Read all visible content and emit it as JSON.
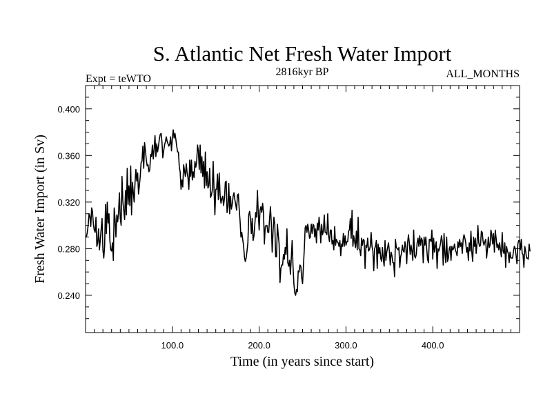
{
  "chart_data": {
    "type": "line",
    "title": "S. Atlantic Net Fresh Water Import",
    "subtitle_left": "Expt = teWTO",
    "subtitle_center": "2816kyr BP",
    "subtitle_right": "ALL_MONTHS",
    "xlabel": "Time (in years since start)",
    "ylabel": "Fresh Water Import (in Sv)",
    "xlim": [
      0,
      500
    ],
    "ylim": [
      0.208,
      0.42
    ],
    "x_ticks": [
      100,
      200,
      300,
      400
    ],
    "x_tick_labels": [
      "100.0",
      "200.0",
      "300.0",
      "400.0"
    ],
    "y_ticks": [
      0.24,
      0.28,
      0.32,
      0.36,
      0.4
    ],
    "y_tick_labels": [
      "0.240",
      "0.280",
      "0.320",
      "0.360",
      "0.400"
    ],
    "grid": false,
    "series": [
      {
        "name": "S. Atlantic Net Fresh Water Import",
        "x_start": 1,
        "x_step": 1,
        "values": [
          0.29,
          0.294,
          0.3,
          0.31,
          0.308,
          0.299,
          0.315,
          0.312,
          0.301,
          0.296,
          0.294,
          0.307,
          0.282,
          0.285,
          0.297,
          0.279,
          0.288,
          0.297,
          0.306,
          0.279,
          0.272,
          0.283,
          0.318,
          0.293,
          0.32,
          0.302,
          0.31,
          0.287,
          0.279,
          0.278,
          0.285,
          0.27,
          0.315,
          0.305,
          0.29,
          0.309,
          0.303,
          0.311,
          0.328,
          0.306,
          0.3,
          0.342,
          0.32,
          0.313,
          0.305,
          0.33,
          0.309,
          0.349,
          0.318,
          0.334,
          0.317,
          0.351,
          0.309,
          0.337,
          0.328,
          0.32,
          0.337,
          0.348,
          0.338,
          0.345,
          0.327,
          0.334,
          0.342,
          0.354,
          0.355,
          0.368,
          0.349,
          0.371,
          0.364,
          0.356,
          0.351,
          0.352,
          0.346,
          0.348,
          0.361,
          0.359,
          0.369,
          0.357,
          0.366,
          0.377,
          0.359,
          0.37,
          0.363,
          0.368,
          0.374,
          0.378,
          0.379,
          0.372,
          0.358,
          0.364,
          0.369,
          0.372,
          0.376,
          0.372,
          0.37,
          0.368,
          0.37,
          0.376,
          0.364,
          0.375,
          0.382,
          0.375,
          0.379,
          0.374,
          0.368,
          0.363,
          0.363,
          0.35,
          0.346,
          0.331,
          0.339,
          0.333,
          0.352,
          0.347,
          0.342,
          0.353,
          0.345,
          0.341,
          0.331,
          0.356,
          0.342,
          0.356,
          0.339,
          0.346,
          0.341,
          0.355,
          0.35,
          0.354,
          0.369,
          0.364,
          0.348,
          0.369,
          0.345,
          0.359,
          0.342,
          0.355,
          0.332,
          0.363,
          0.334,
          0.346,
          0.332,
          0.334,
          0.349,
          0.324,
          0.326,
          0.33,
          0.355,
          0.331,
          0.309,
          0.331,
          0.331,
          0.344,
          0.322,
          0.345,
          0.326,
          0.319,
          0.323,
          0.325,
          0.317,
          0.323,
          0.337,
          0.338,
          0.311,
          0.316,
          0.336,
          0.31,
          0.325,
          0.314,
          0.318,
          0.325,
          0.328,
          0.322,
          0.318,
          0.313,
          0.326,
          0.327,
          0.314,
          0.304,
          0.29,
          0.294,
          0.288,
          0.283,
          0.273,
          0.269,
          0.272,
          0.278,
          0.285,
          0.309,
          0.312,
          0.306,
          0.293,
          0.306,
          0.287,
          0.291,
          0.301,
          0.311,
          0.307,
          0.33,
          0.31,
          0.296,
          0.313,
          0.316,
          0.311,
          0.319,
          0.311,
          0.284,
          0.299,
          0.3,
          0.3,
          0.294,
          0.294,
          0.306,
          0.316,
          0.302,
          0.277,
          0.295,
          0.307,
          0.301,
          0.273,
          0.273,
          0.301,
          0.292,
          0.284,
          0.251,
          0.263,
          0.266,
          0.266,
          0.275,
          0.271,
          0.281,
          0.275,
          0.297,
          0.268,
          0.265,
          0.27,
          0.258,
          0.272,
          0.287,
          0.265,
          0.25,
          0.242,
          0.24,
          0.245,
          0.243,
          0.261,
          0.26,
          0.266,
          0.265,
          0.255,
          0.25,
          0.265,
          0.28,
          0.298,
          0.3,
          0.294,
          0.301,
          0.296,
          0.289,
          0.29,
          0.301,
          0.293,
          0.301,
          0.3,
          0.29,
          0.297,
          0.285,
          0.302,
          0.296,
          0.307,
          0.298,
          0.285,
          0.301,
          0.292,
          0.295,
          0.309,
          0.294,
          0.294,
          0.292,
          0.31,
          0.291,
          0.286,
          0.296,
          0.296,
          0.284,
          0.287,
          0.279,
          0.299,
          0.283,
          0.288,
          0.286,
          0.285,
          0.282,
          0.287,
          0.274,
          0.284,
          0.282,
          0.293,
          0.282,
          0.291,
          0.283,
          0.286,
          0.286,
          0.295,
          0.296,
          0.306,
          0.289,
          0.313,
          0.282,
          0.291,
          0.286,
          0.281,
          0.295,
          0.279,
          0.307,
          0.28,
          0.279,
          0.274,
          0.289,
          0.283,
          0.288,
          0.287,
          0.263,
          0.283,
          0.281,
          0.289,
          0.278,
          0.279,
          0.282,
          0.294,
          0.282,
          0.278,
          0.261,
          0.28,
          0.282,
          0.287,
          0.263,
          0.284,
          0.276,
          0.281,
          0.272,
          0.269,
          0.281,
          0.271,
          0.265,
          0.287,
          0.27,
          0.277,
          0.281,
          0.285,
          0.278,
          0.266,
          0.277,
          0.274,
          0.268,
          0.268,
          0.256,
          0.288,
          0.281,
          0.28,
          0.279,
          0.281,
          0.264,
          0.273,
          0.276,
          0.283,
          0.278,
          0.277,
          0.286,
          0.281,
          0.267,
          0.285,
          0.292,
          0.285,
          0.275,
          0.283,
          0.278,
          0.27,
          0.296,
          0.274,
          0.272,
          0.275,
          0.285,
          0.289,
          0.282,
          0.291,
          0.283,
          0.289,
          0.287,
          0.268,
          0.29,
          0.283,
          0.29,
          0.28,
          0.271,
          0.268,
          0.288,
          0.288,
          0.286,
          0.296,
          0.271,
          0.289,
          0.277,
          0.282,
          0.286,
          0.263,
          0.28,
          0.278,
          0.281,
          0.285,
          0.291,
          0.286,
          0.266,
          0.293,
          0.276,
          0.268,
          0.29,
          0.269,
          0.272,
          0.28,
          0.282,
          0.27,
          0.282,
          0.279,
          0.28,
          0.284,
          0.279,
          0.277,
          0.274,
          0.286,
          0.281,
          0.288,
          0.282,
          0.285,
          0.276,
          0.288,
          0.292,
          0.289,
          0.285,
          0.277,
          0.281,
          0.27,
          0.285,
          0.278,
          0.295,
          0.277,
          0.269,
          0.29,
          0.282,
          0.289,
          0.276,
          0.285,
          0.3,
          0.285,
          0.282,
          0.283,
          0.295,
          0.294,
          0.286,
          0.283,
          0.286,
          0.288,
          0.272,
          0.279,
          0.29,
          0.281,
          0.283,
          0.296,
          0.292,
          0.284,
          0.293,
          0.277,
          0.296,
          0.289,
          0.281,
          0.284,
          0.279,
          0.285,
          0.279,
          0.273,
          0.294,
          0.278,
          0.276,
          0.285,
          0.264,
          0.282,
          0.278,
          0.276,
          0.268,
          0.277,
          0.272,
          0.272,
          0.272,
          0.278,
          0.282,
          0.28,
          0.274,
          0.267,
          0.284,
          0.287,
          0.287,
          0.279,
          0.288,
          0.276,
          0.275,
          0.264,
          0.282,
          0.278,
          0.272,
          0.272,
          0.271,
          0.284,
          0.278
        ]
      }
    ]
  }
}
